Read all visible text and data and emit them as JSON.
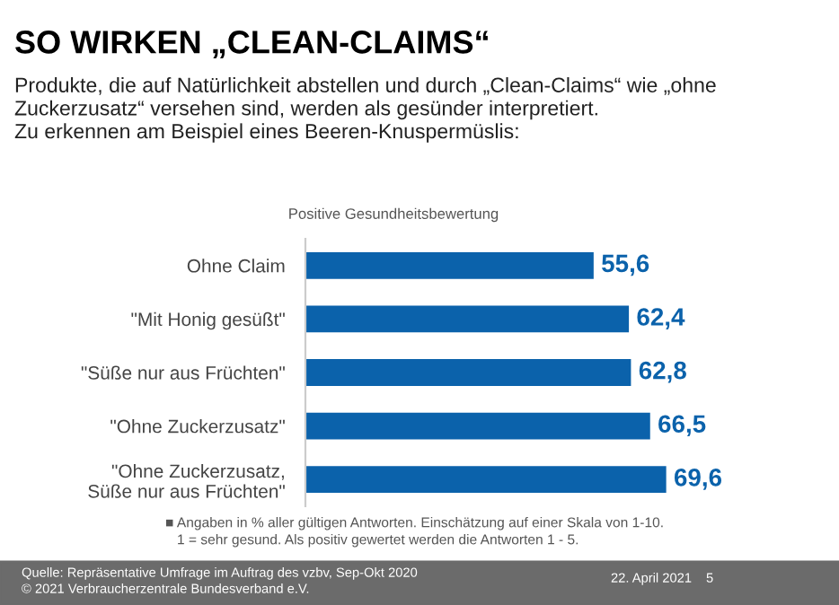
{
  "chart_data": {
    "type": "bar",
    "orientation": "horizontal",
    "title": "SO WIRKEN „CLEAN-CLAIMS“",
    "subtitle": "Produkte, die auf Natürlichkeit abstellen und durch „Clean-Claims“ wie „ohne Zuckerzusatz“ versehen sind, werden als gesünder interpretiert.\nZu erkennen am Beispiel eines Beeren-Knuspermüslis:",
    "xlabel": "Positive Gesundheitsbewertung",
    "categories": [
      "Ohne Claim",
      "\"Mit Honig gesüßt\"",
      "\"Süße nur aus Früchten\"",
      "\"Ohne Zuckerzusatz\"",
      "\"Ohne Zuckerzusatz,\nSüße nur aus Früchten\""
    ],
    "values": [
      55.6,
      62.4,
      62.8,
      66.5,
      69.6
    ],
    "value_labels": [
      "55,6",
      "62,4",
      "62,8",
      "66,5",
      "69,6"
    ],
    "color": "#0b62ab",
    "tick_labels": "y",
    "grid": false,
    "legend": false,
    "annotations": [
      "■ Angaben in % aller gültigen Antworten. Einschätzung auf einer Skala von 1-10.\n   1 = sehr gesund. Als positiv gewertet werden die Antworten 1 - 5.",
      "Quelle: Repräsentative Umfrage im Auftrag des vzbv, Sep-Okt 2020\n© 2021 Verbraucherzentrale Bundesverband e.V.",
      "22. April 2021",
      "5"
    ]
  }
}
